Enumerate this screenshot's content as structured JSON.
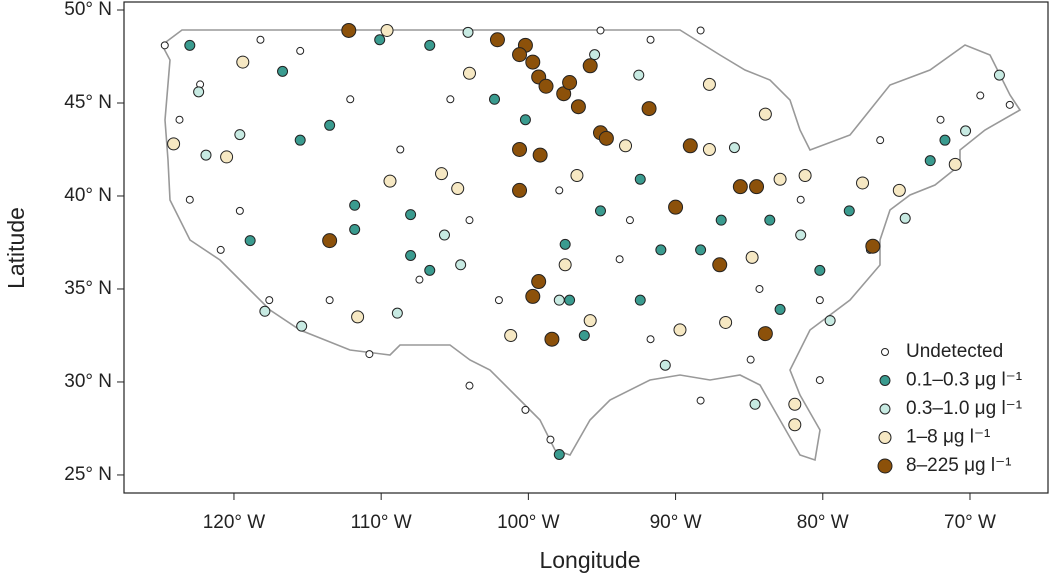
{
  "chart_data": {
    "type": "scatter",
    "x_label": "Longitude",
    "y_label": "Latitude",
    "xlim": [
      -127.47,
      -64.7
    ],
    "ylim": [
      24.03,
      50.43
    ],
    "xticks": [
      {
        "value": -120,
        "label": "120° W"
      },
      {
        "value": -110,
        "label": "110° W"
      },
      {
        "value": -100,
        "label": "100° W"
      },
      {
        "value": -90,
        "label": "90° W"
      },
      {
        "value": -80,
        "label": "80° W"
      },
      {
        "value": -70,
        "label": "70° W"
      }
    ],
    "yticks": [
      {
        "value": 25,
        "label": "25° N"
      },
      {
        "value": 30,
        "label": "30° N"
      },
      {
        "value": 35,
        "label": "35° N"
      },
      {
        "value": 40,
        "label": "40° N"
      },
      {
        "value": 45,
        "label": "45° N"
      },
      {
        "value": 50,
        "label": "50° N"
      }
    ],
    "legend": "bottom-right",
    "series": [
      {
        "name": "Undetected",
        "color": "#ffffff",
        "x": [
          -124.7,
          -122.3,
          -123.7,
          -123.0,
          -120.9,
          -117.6,
          -113.5,
          -110.8,
          -107.4,
          -108.7,
          -112.1,
          -115.5,
          -105.3,
          -104.0,
          -102.0,
          -104.0,
          -100.2,
          -98.5,
          -93.8,
          -91.7,
          -88.3,
          -84.9,
          -80.2,
          -80.2,
          -76.8,
          -72.0,
          -67.3,
          -69.3,
          -76.1,
          -81.5,
          -88.3,
          -91.7,
          -95.1,
          -97.9,
          -93.1,
          -118.2,
          -119.6,
          -84.3
        ],
        "y": [
          48.1,
          46.0,
          44.1,
          39.8,
          37.1,
          34.4,
          34.4,
          31.5,
          35.5,
          42.5,
          45.2,
          47.8,
          45.2,
          38.7,
          34.4,
          29.8,
          28.5,
          26.9,
          36.6,
          32.3,
          29.0,
          31.2,
          30.1,
          34.4,
          37.1,
          44.1,
          44.9,
          45.4,
          43.0,
          39.8,
          48.9,
          48.4,
          48.9,
          40.3,
          38.7,
          48.4,
          39.2,
          35.0
        ]
      },
      {
        "name": "0.1–0.3 μg l⁻¹",
        "color": "#3a9b8f",
        "x": [
          -123.0,
          -116.7,
          -115.5,
          -113.5,
          -111.8,
          -111.8,
          -108.0,
          -108.0,
          -102.3,
          -100.2,
          -106.7,
          -97.5,
          -97.2,
          -96.2,
          -95.1,
          -92.4,
          -91.0,
          -88.3,
          -86.9,
          -83.6,
          -80.2,
          -82.9,
          -78.2,
          -72.7,
          -71.7,
          -110.1,
          -106.7,
          -97.9,
          -118.9,
          -92.4
        ],
        "y": [
          48.1,
          46.7,
          43.0,
          43.8,
          39.5,
          38.2,
          39.0,
          36.8,
          45.2,
          44.1,
          36.0,
          37.4,
          34.4,
          32.5,
          39.2,
          40.9,
          37.1,
          37.1,
          38.7,
          38.7,
          36.0,
          33.9,
          39.2,
          41.9,
          43.0,
          48.4,
          48.1,
          26.1,
          37.6,
          34.4
        ]
      },
      {
        "name": "0.3–1.0 μg l⁻¹",
        "color": "#c7eae2",
        "x": [
          -115.4,
          -117.9,
          -108.9,
          -119.6,
          -121.9,
          -122.4,
          -104.1,
          -95.5,
          -92.5,
          -86.0,
          -81.5,
          -79.5,
          -84.6,
          -90.7,
          -97.9,
          -105.7,
          -104.6,
          -70.3,
          -68.0,
          -74.4
        ],
        "y": [
          33.0,
          33.8,
          33.7,
          43.3,
          42.2,
          45.6,
          48.8,
          47.6,
          46.5,
          42.6,
          37.9,
          33.3,
          28.8,
          30.9,
          34.4,
          37.9,
          36.3,
          43.5,
          46.5,
          38.8
        ]
      },
      {
        "name": "1–8 μg l⁻¹",
        "color": "#f6e8c3",
        "x": [
          -109.6,
          -119.4,
          -124.1,
          -120.5,
          -109.4,
          -104.0,
          -104.8,
          -105.9,
          -111.6,
          -101.2,
          -96.7,
          -93.4,
          -87.7,
          -83.9,
          -82.9,
          -81.2,
          -77.3,
          -74.8,
          -71.0,
          -81.9,
          -81.9,
          -86.6,
          -89.7,
          -95.8,
          -97.5,
          -87.7,
          -84.8
        ],
        "y": [
          48.9,
          47.2,
          42.8,
          42.1,
          40.8,
          46.6,
          40.4,
          41.2,
          33.5,
          32.5,
          41.1,
          42.7,
          42.5,
          44.4,
          40.9,
          41.1,
          40.7,
          40.3,
          41.7,
          28.8,
          27.7,
          33.2,
          32.8,
          33.3,
          36.3,
          46.0,
          36.7
        ]
      },
      {
        "name": "8–225 μg l⁻¹",
        "color": "#8c510a",
        "x": [
          -112.2,
          -102.1,
          -100.2,
          -100.6,
          -99.7,
          -99.3,
          -98.8,
          -97.6,
          -97.2,
          -95.8,
          -96.6,
          -95.1,
          -94.7,
          -91.8,
          -100.6,
          -99.2,
          -100.6,
          -90.0,
          -85.6,
          -84.5,
          -113.5,
          -87.0,
          -99.3,
          -99.7,
          -98.4,
          -83.9,
          -76.6,
          -89.0
        ],
        "y": [
          48.9,
          48.4,
          48.1,
          47.6,
          47.2,
          46.4,
          45.9,
          45.5,
          46.1,
          47.0,
          44.8,
          43.4,
          43.1,
          44.7,
          42.5,
          42.2,
          40.3,
          39.4,
          40.5,
          40.5,
          37.6,
          36.3,
          35.4,
          34.6,
          32.3,
          32.6,
          37.3,
          42.7
        ]
      }
    ]
  }
}
